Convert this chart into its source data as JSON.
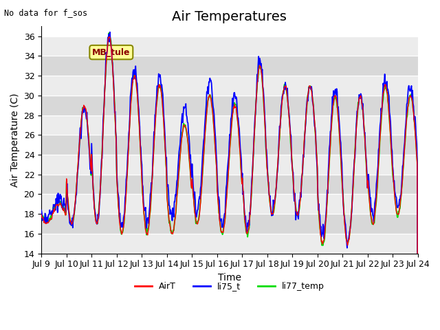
{
  "title": "Air Temperatures",
  "no_data_text": "No data for f_sos",
  "annotation_text": "MB_tule",
  "xlabel": "Time",
  "ylabel": "Air Temperature (C)",
  "ylim": [
    14,
    37
  ],
  "yticks": [
    14,
    16,
    18,
    20,
    22,
    24,
    26,
    28,
    30,
    32,
    34,
    36
  ],
  "xtick_labels": [
    "Jul 9",
    "Jul 10",
    "Jul 11",
    "Jul 12",
    "Jul 13",
    "Jul 14",
    "Jul 15",
    "Jul 16",
    "Jul 17",
    "Jul 18",
    "Jul 19",
    "Jul 20",
    "Jul 21",
    "Jul 22",
    "Jul 23",
    "Jul 24"
  ],
  "legend_labels": [
    "AirT",
    "li75_t",
    "li77_temp"
  ],
  "airT_color": "red",
  "li75_color": "blue",
  "li77_color": "#00dd00",
  "band_colors": [
    "#ececec",
    "#d8d8d8"
  ],
  "title_fontsize": 14,
  "label_fontsize": 10,
  "tick_fontsize": 9,
  "day_maxes": [
    19,
    29,
    36,
    32,
    31,
    27,
    30,
    29,
    33,
    31,
    31,
    30,
    30,
    31,
    30
  ],
  "day_mins": [
    17,
    17,
    17,
    16,
    16,
    16,
    17,
    16,
    16,
    18,
    18,
    15,
    15,
    17,
    18
  ]
}
